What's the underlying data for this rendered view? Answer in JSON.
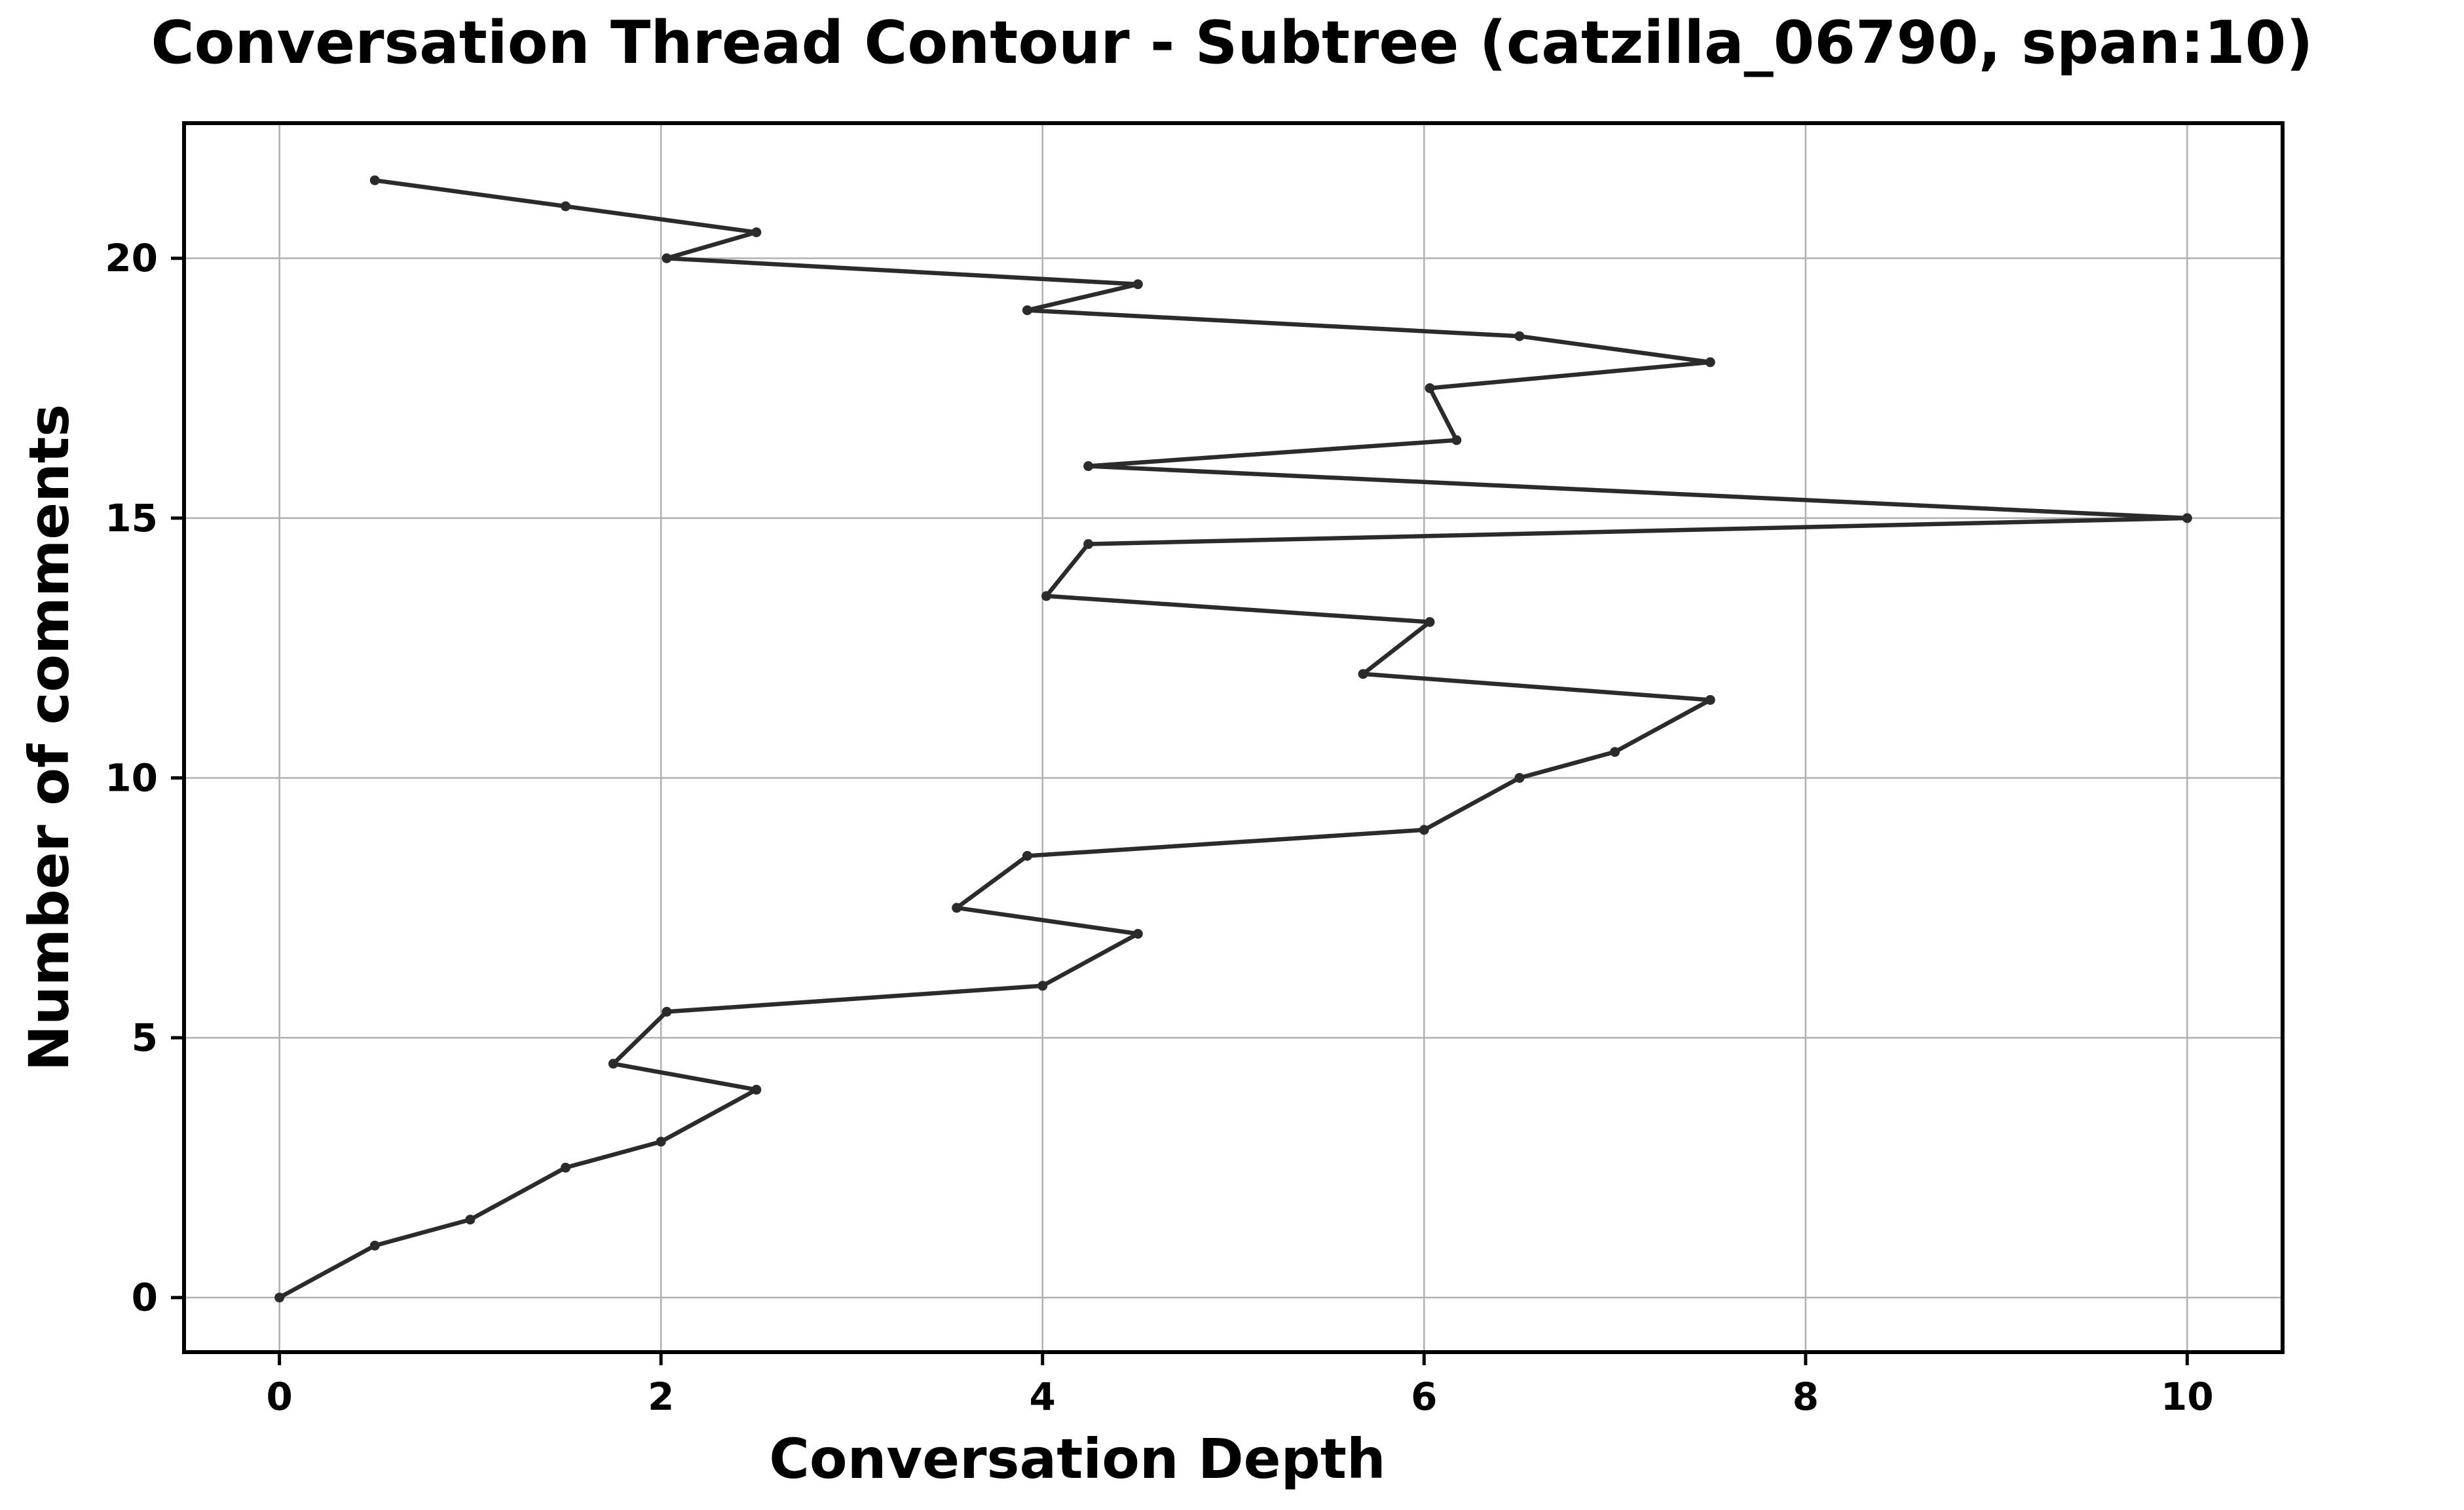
{
  "chart_data": {
    "type": "line",
    "title": "Conversation Thread Contour  - Subtree (catzilla_06790, span:10)",
    "xlabel": "Conversation Depth",
    "ylabel": "Number of comments",
    "xlim": [
      -0.5,
      10.5
    ],
    "ylim": [
      -1.05,
      22.6
    ],
    "xticks": [
      0,
      2,
      4,
      6,
      8,
      10
    ],
    "yticks": [
      0,
      5,
      10,
      15,
      20
    ],
    "grid": true,
    "line_color": "#2b2b2b",
    "series": [
      {
        "x": [
          0,
          0.5,
          1.0,
          1.5,
          2.0,
          2.5,
          1.75,
          2.03,
          4.0,
          4.5,
          3.55,
          3.92,
          6.0,
          6.5,
          7.0,
          7.5,
          5.68,
          6.03,
          4.02,
          4.24,
          10.0,
          4.24,
          6.17,
          6.03,
          7.5,
          6.5,
          3.92,
          4.5,
          2.03,
          2.5,
          1.5,
          0.5
        ],
        "y": [
          0,
          1.0,
          1.5,
          2.5,
          3.0,
          4.0,
          4.5,
          5.5,
          6.0,
          7.0,
          7.5,
          8.5,
          9.0,
          10.0,
          10.5,
          11.5,
          12.0,
          13.0,
          13.5,
          14.5,
          15.0,
          16.0,
          16.5,
          17.5,
          18.0,
          18.5,
          19.0,
          19.5,
          20.0,
          20.5,
          21.0,
          21.5
        ]
      }
    ]
  }
}
